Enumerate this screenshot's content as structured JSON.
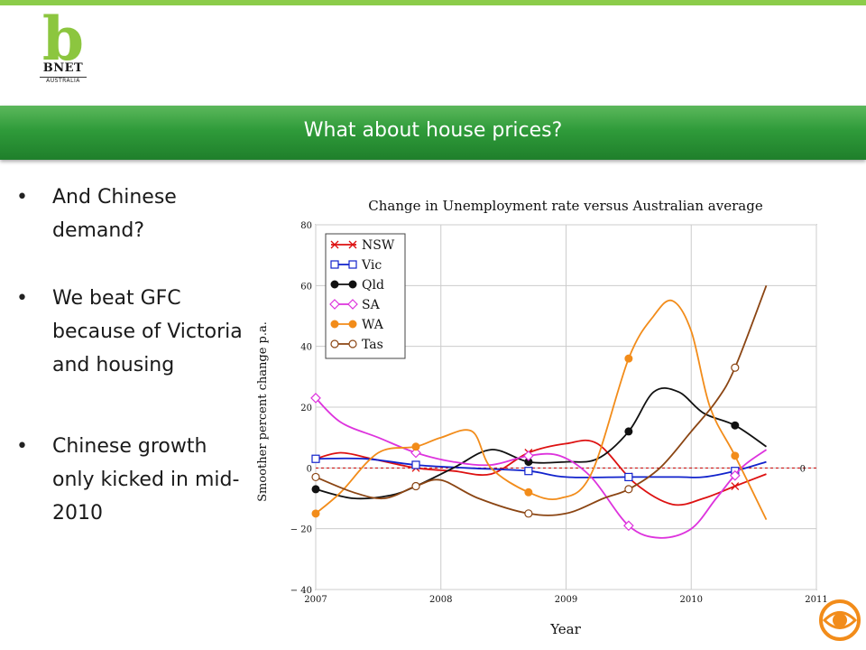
{
  "logo": {
    "letter": "b",
    "name": "BNET",
    "sub": "AUSTRALIA"
  },
  "slide": {
    "title": "What about house prices?"
  },
  "bullets": [
    "And Chinese demand?",
    "We beat GFC because of Victoria and housing",
    "Chinese growth only kicked in mid-2010"
  ],
  "colors": {
    "title_bar": "#2f9b3a",
    "accent": "#8cc63f"
  },
  "chart_data": {
    "type": "line",
    "title": "Change in Unemployment rate versus Australian average",
    "xlabel": "Year",
    "ylabel": "Smoother percent change p.a.",
    "xlim": [
      2007,
      2011
    ],
    "ylim": [
      -40,
      80
    ],
    "xticks": [
      2007,
      2008,
      2009,
      2010,
      2011
    ],
    "yticks": [
      -40,
      -20,
      0,
      20,
      40,
      60,
      80
    ],
    "ytick_labels": [
      "− 40",
      "− 20",
      "0",
      "20",
      "40",
      "60",
      "80"
    ],
    "reference_line": {
      "y": 0,
      "label": "0",
      "color": "#cc0000",
      "style": "dashed"
    },
    "grid": true,
    "legend_position": "top-left",
    "series": [
      {
        "name": "NSW",
        "color": "#dd1111",
        "marker": "x",
        "x": [
          2007.0,
          2007.2,
          2007.45,
          2007.8,
          2008.1,
          2008.4,
          2008.7,
          2009.0,
          2009.25,
          2009.55,
          2009.85,
          2010.1,
          2010.35,
          2010.6
        ],
        "y": [
          3,
          5,
          3,
          0,
          -1,
          -2,
          5,
          8,
          8,
          -5,
          -12,
          -10,
          -6,
          -2
        ]
      },
      {
        "name": "Vic",
        "color": "#1122cc",
        "marker": "square",
        "x": [
          2007.0,
          2007.4,
          2007.8,
          2008.2,
          2008.7,
          2009.0,
          2009.5,
          2009.9,
          2010.1,
          2010.35,
          2010.6
        ],
        "y": [
          3,
          3,
          1,
          0,
          -1,
          -3,
          -3,
          -3,
          -3,
          -1,
          2
        ]
      },
      {
        "name": "Qld",
        "color": "#111111",
        "marker": "filled-circle",
        "x": [
          2007.0,
          2007.3,
          2007.6,
          2007.8,
          2008.1,
          2008.4,
          2008.7,
          2009.0,
          2009.25,
          2009.5,
          2009.7,
          2009.9,
          2010.1,
          2010.35,
          2010.6
        ],
        "y": [
          -7,
          -10,
          -9,
          -6,
          0,
          6,
          2,
          2,
          3,
          12,
          25,
          25,
          18,
          14,
          7
        ]
      },
      {
        "name": "SA",
        "color": "#dd33dd",
        "marker": "diamond",
        "x": [
          2007.0,
          2007.2,
          2007.5,
          2007.8,
          2008.1,
          2008.4,
          2008.7,
          2008.95,
          2009.2,
          2009.5,
          2009.75,
          2010.0,
          2010.2,
          2010.4,
          2010.6
        ],
        "y": [
          23,
          15,
          10,
          5,
          2,
          1,
          4,
          4,
          -3,
          -19,
          -23,
          -20,
          -10,
          0,
          6
        ]
      },
      {
        "name": "WA",
        "color": "#f28c1a",
        "marker": "filled-circle",
        "x": [
          2007.0,
          2007.2,
          2007.5,
          2007.8,
          2008.0,
          2008.25,
          2008.4,
          2008.7,
          2008.95,
          2009.2,
          2009.5,
          2009.7,
          2009.85,
          2010.0,
          2010.15,
          2010.35,
          2010.6
        ],
        "y": [
          -15,
          -8,
          5,
          7,
          10,
          12,
          0,
          -8,
          -10,
          -2,
          36,
          50,
          55,
          45,
          20,
          4,
          -17
        ]
      },
      {
        "name": "Tas",
        "color": "#8b4513",
        "marker": "open-circle",
        "x": [
          2007.0,
          2007.3,
          2007.55,
          2007.8,
          2008.0,
          2008.3,
          2008.7,
          2009.0,
          2009.3,
          2009.5,
          2009.75,
          2010.0,
          2010.2,
          2010.35,
          2010.6
        ],
        "y": [
          -3,
          -8,
          -10,
          -6,
          -4,
          -10,
          -15,
          -15,
          -10,
          -7,
          0,
          12,
          22,
          33,
          60
        ]
      }
    ]
  }
}
